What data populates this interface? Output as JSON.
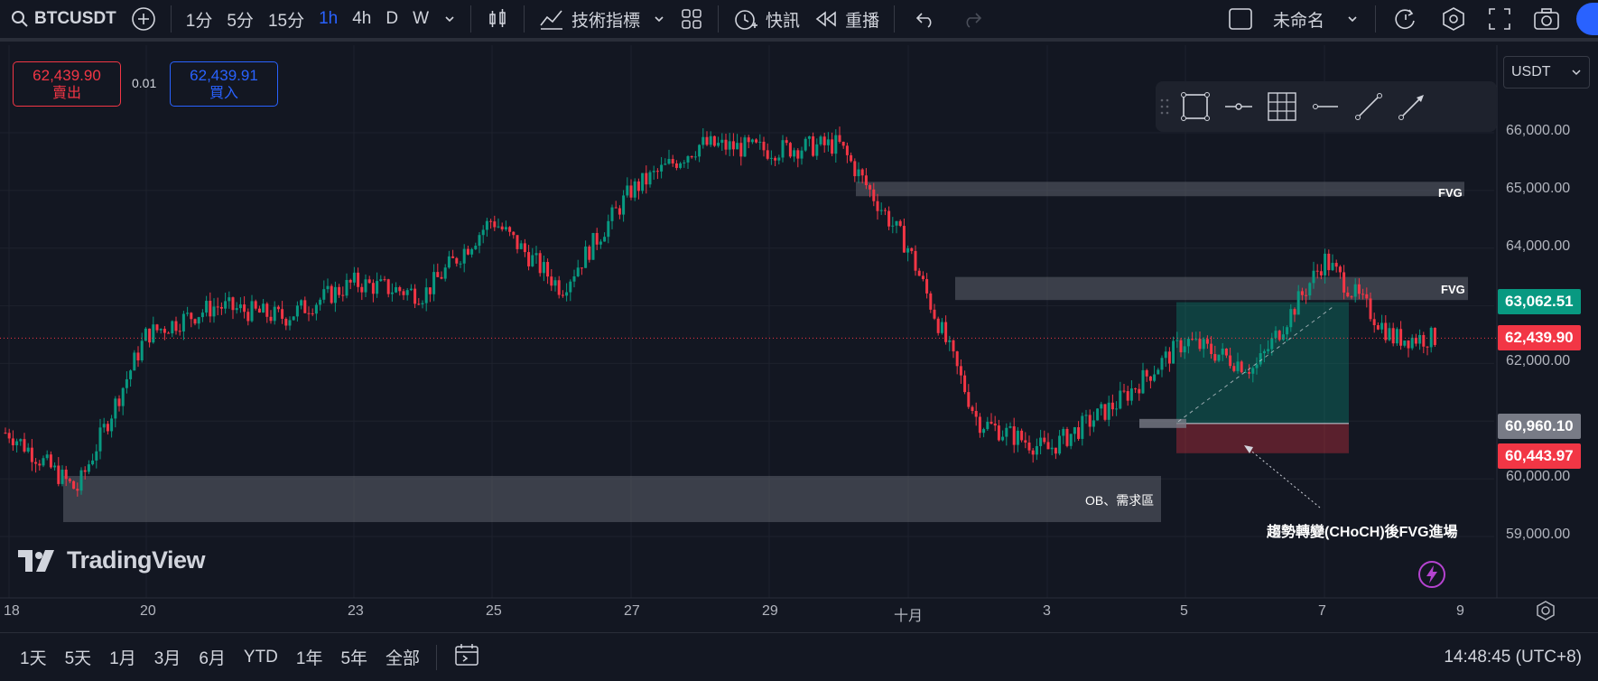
{
  "toolbar": {
    "symbol": "BTCUSDT",
    "intervals": [
      "1分",
      "5分",
      "15分",
      "1h",
      "4h",
      "D",
      "W"
    ],
    "active_interval": "1h",
    "indicators_label": "技術指標",
    "alerts_label": "快訊",
    "replay_label": "重播",
    "layout_name": "未命名"
  },
  "order_panel": {
    "sell_price": "62,439.90",
    "sell_label": "賣出",
    "spread": "0.01",
    "buy_price": "62,439.91",
    "buy_label": "買入"
  },
  "currency": "USDT",
  "price_axis": {
    "ticks": [
      "66,000.00",
      "65,000.00",
      "64,000.00",
      "63,062.51",
      "62,439.90",
      "62,000.00",
      "60,960.10",
      "60,443.97",
      "60,000.00",
      "59,000.00"
    ]
  },
  "price_labels": [
    {
      "value": "63,062.51",
      "color": "#089981"
    },
    {
      "value": "62,439.90",
      "color": "#f23645"
    },
    {
      "value": "60,960.10",
      "color": "#787b86"
    },
    {
      "value": "60,443.97",
      "color": "#f23645"
    }
  ],
  "time_axis": [
    "18",
    "20",
    "23",
    "25",
    "27",
    "29",
    "十月",
    "3",
    "5",
    "7",
    "9"
  ],
  "annotations": {
    "fvg_1": "FVG",
    "fvg_2": "FVG",
    "ob_zone": "OB、需求區",
    "entry_note": "趨勢轉變(CHoCH)後FVG進場"
  },
  "logo": "TradingView",
  "range_buttons": [
    "1天",
    "5天",
    "1月",
    "3月",
    "6月",
    "YTD",
    "1年",
    "5年",
    "全部"
  ],
  "clock": "14:48:45 (UTC+8)",
  "colors": {
    "up": "#089981",
    "down": "#f23645",
    "accent": "#2962ff",
    "background": "#131722"
  },
  "chart_data": {
    "type": "candlestick",
    "symbol": "BTCUSDT",
    "interval": "1h",
    "ylim": [
      58800,
      66800
    ],
    "x_ticks": [
      "18",
      "20",
      "23",
      "25",
      "27",
      "29",
      "十月",
      "3",
      "5",
      "7",
      "9"
    ],
    "y_ticks": [
      59000,
      60000,
      61000,
      62000,
      63000,
      64000,
      65000,
      66000
    ],
    "last_price": 62439.9,
    "close_path": [
      {
        "x": "18",
        "y": 60800
      },
      {
        "x": "19",
        "y": 59800
      },
      {
        "x": "20",
        "y": 62500
      },
      {
        "x": "21",
        "y": 63000
      },
      {
        "x": "22",
        "y": 62800
      },
      {
        "x": "23",
        "y": 63400
      },
      {
        "x": "24",
        "y": 63200
      },
      {
        "x": "25",
        "y": 64500
      },
      {
        "x": "26",
        "y": 63300
      },
      {
        "x": "27",
        "y": 65000
      },
      {
        "x": "28",
        "y": 65800
      },
      {
        "x": "29",
        "y": 65700
      },
      {
        "x": "30",
        "y": 65800
      },
      {
        "x": "十月",
        "y": 64000
      },
      {
        "x": "2",
        "y": 61000
      },
      {
        "x": "3",
        "y": 60500
      },
      {
        "x": "4",
        "y": 61300
      },
      {
        "x": "5",
        "y": 62400
      },
      {
        "x": "6",
        "y": 61900
      },
      {
        "x": "7",
        "y": 63800
      },
      {
        "x": "8",
        "y": 62440
      }
    ],
    "zones": [
      {
        "label": "FVG",
        "from": 64900,
        "to": 65150
      },
      {
        "label": "FVG",
        "from": 63100,
        "to": 63500
      },
      {
        "label": "OB、需求區",
        "from": 59250,
        "to": 60050
      }
    ],
    "position": {
      "entry": 60960.1,
      "target": 63062.51,
      "stop": 60443.97
    }
  }
}
